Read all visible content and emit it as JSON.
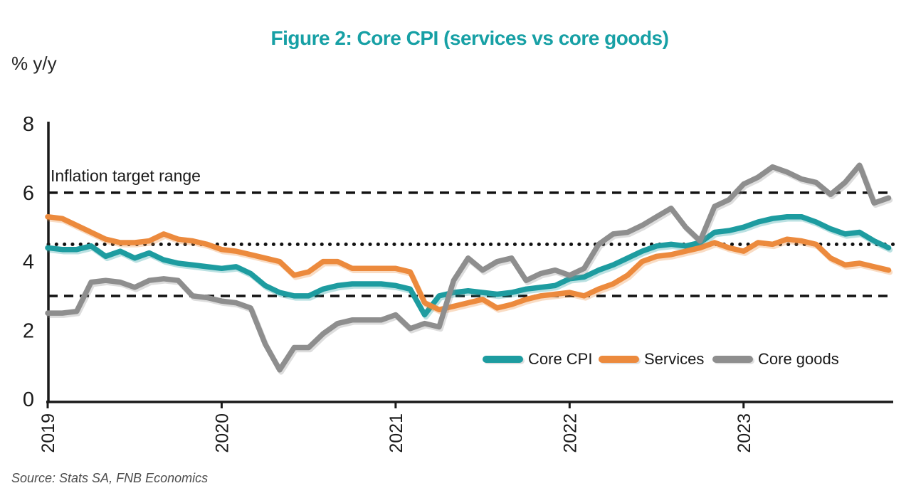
{
  "figure": {
    "title": "Figure 2: Core CPI (services vs core goods)",
    "y_axis_unit_label": "% y/y",
    "annotation": "Inflation target range",
    "source_note": "Source: Stats SA, FNB Economics"
  },
  "colors": {
    "title_teal": "#17A0A5",
    "core_cpi": "#1D9CA0",
    "services": "#EC8A3D",
    "core_goods": "#8E8E8E",
    "axis": "#1a1a1a",
    "reference_line": "#111111"
  },
  "chart_data": {
    "type": "line",
    "title": "Figure 2: Core CPI (services vs core goods)",
    "ylabel": "% y/y",
    "ylim": [
      0,
      8
    ],
    "yticks": [
      0,
      2,
      4,
      6,
      8
    ],
    "xticks": [
      "2019",
      "2020",
      "2021",
      "2022",
      "2023"
    ],
    "x_frequency": "monthly",
    "x_range": "Jan 2019 - Nov 2023",
    "grid": false,
    "legend_position": "inside plot, lower right",
    "annotation": "Inflation target range",
    "reference_lines": [
      {
        "label": "Inflation target upper bound",
        "value": 6,
        "style": "dashed"
      },
      {
        "label": "Inflation target midpoint",
        "value": 4.5,
        "style": "dotted"
      },
      {
        "label": "Inflation target lower bound",
        "value": 3,
        "style": "dashed"
      }
    ],
    "series": [
      {
        "name": "Core CPI",
        "color": "#1D9CA0",
        "values": [
          4.4,
          4.35,
          4.35,
          4.45,
          4.15,
          4.3,
          4.1,
          4.25,
          4.05,
          3.95,
          3.9,
          3.85,
          3.8,
          3.85,
          3.65,
          3.3,
          3.1,
          3.0,
          3.0,
          3.2,
          3.3,
          3.35,
          3.35,
          3.35,
          3.3,
          3.2,
          2.45,
          3.0,
          3.1,
          3.15,
          3.1,
          3.05,
          3.1,
          3.2,
          3.25,
          3.3,
          3.5,
          3.55,
          3.75,
          3.9,
          4.1,
          4.3,
          4.45,
          4.5,
          4.45,
          4.55,
          4.85,
          4.9,
          5.0,
          5.15,
          5.25,
          5.3,
          5.3,
          5.15,
          4.95,
          4.8,
          4.85,
          4.6,
          4.4
        ]
      },
      {
        "name": "Services",
        "color": "#EC8A3D",
        "values": [
          5.3,
          5.25,
          5.05,
          4.85,
          4.65,
          4.55,
          4.55,
          4.6,
          4.8,
          4.65,
          4.6,
          4.5,
          4.35,
          4.3,
          4.2,
          4.1,
          4.0,
          3.6,
          3.7,
          4.0,
          4.0,
          3.8,
          3.8,
          3.8,
          3.8,
          3.7,
          2.8,
          2.6,
          2.7,
          2.8,
          2.9,
          2.65,
          2.75,
          2.9,
          3.0,
          3.05,
          3.1,
          3.0,
          3.2,
          3.35,
          3.6,
          4.0,
          4.15,
          4.2,
          4.3,
          4.4,
          4.55,
          4.4,
          4.3,
          4.55,
          4.5,
          4.65,
          4.6,
          4.5,
          4.1,
          3.9,
          3.95,
          3.85,
          3.75
        ]
      },
      {
        "name": "Core goods",
        "color": "#8E8E8E",
        "values": [
          2.5,
          2.5,
          2.55,
          3.4,
          3.45,
          3.4,
          3.25,
          3.45,
          3.5,
          3.45,
          3.0,
          2.95,
          2.85,
          2.8,
          2.65,
          1.6,
          0.85,
          1.5,
          1.5,
          1.9,
          2.2,
          2.3,
          2.3,
          2.3,
          2.45,
          2.05,
          2.2,
          2.1,
          3.45,
          4.1,
          3.75,
          4.0,
          4.1,
          3.45,
          3.65,
          3.75,
          3.6,
          3.8,
          4.5,
          4.8,
          4.85,
          5.05,
          5.3,
          5.55,
          5.0,
          4.6,
          5.6,
          5.8,
          6.25,
          6.45,
          6.75,
          6.6,
          6.4,
          6.3,
          5.95,
          6.3,
          6.8,
          5.7,
          5.85
        ]
      }
    ]
  }
}
